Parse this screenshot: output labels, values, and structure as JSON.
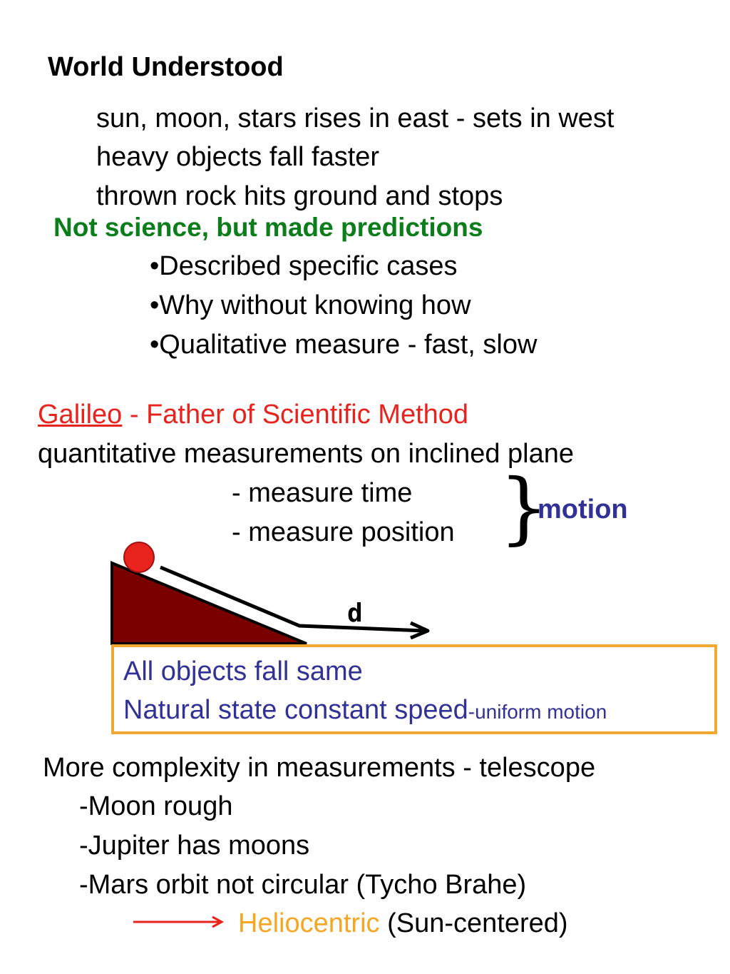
{
  "title": "World Understood",
  "observations": [
    "sun, moon, stars rises in east - sets in west",
    "heavy objects fall faster",
    "thrown rock hits ground and stops"
  ],
  "not_science": {
    "heading": "Not science, but made predictions",
    "bullets": [
      "•Described specific cases",
      "•Why without knowing how",
      "•Qualitative measure - fast, slow"
    ]
  },
  "galileo": {
    "name": "Galileo",
    "title_rest": " - Father of Scientific Method",
    "line": "quantitative measurements on inclined plane",
    "measures": [
      "- measure time",
      "- measure position"
    ],
    "brace": "}",
    "group_label": "motion"
  },
  "diagram": {
    "distance_label": "d",
    "colors": {
      "ramp": "#7a0000",
      "ball": "#e8231d",
      "path": "#000000"
    }
  },
  "conclusion": {
    "line1": "All objects fall same",
    "line2_main": "Natural state constant speed",
    "line2_small": "-uniform motion"
  },
  "telescope": {
    "heading": "More complexity in measurements - telescope",
    "items": [
      "-Moon rough",
      "-Jupiter has moons",
      "-Mars orbit not circular (Tycho Brahe)"
    ],
    "result_highlight": "Heliocentric",
    "result_rest": " (Sun-centered)"
  },
  "colors": {
    "green": "#0b7d1a",
    "red": "#e8231d",
    "blue": "#323296",
    "orange": "#f5a623",
    "box_border": "#f0a830"
  }
}
